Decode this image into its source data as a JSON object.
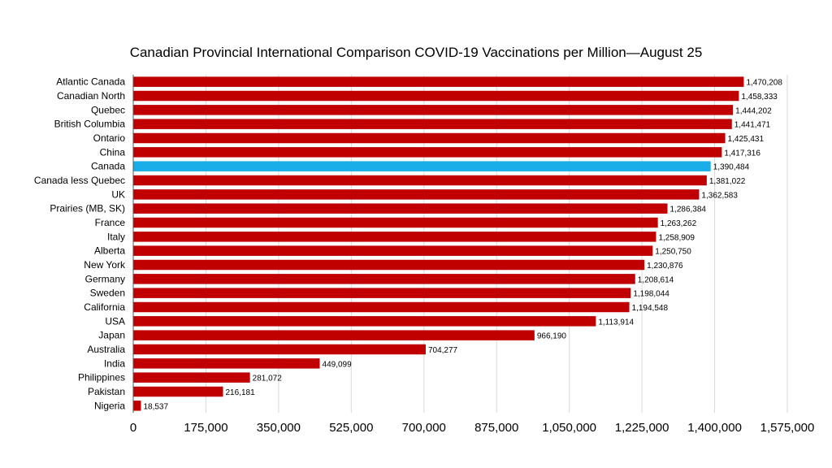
{
  "chart_data": {
    "type": "bar",
    "orientation": "horizontal",
    "title": "Canadian Provincial International Comparison COVID-19 Vaccinations per Million—August 25",
    "xlabel": "",
    "ylabel": "",
    "xlim": [
      0,
      1575000
    ],
    "x_ticks": [
      "0",
      "175,000",
      "350,000",
      "525,000",
      "700,000",
      "875,000",
      "1,050,000",
      "1,225,000",
      "1,400,000",
      "1,575,000"
    ],
    "x_tick_values": [
      0,
      175000,
      350000,
      525000,
      700000,
      875000,
      1050000,
      1225000,
      1400000,
      1575000
    ],
    "grid": "vertical",
    "legend": "none",
    "colors": {
      "default": "#c00000",
      "highlight": "#1aaee8",
      "grid": "#d9d9d9"
    },
    "categories": [
      "Atlantic Canada",
      "Canadian North",
      "Quebec",
      "British Columbia",
      "Ontario",
      "China",
      "Canada",
      "Canada less Quebec",
      "UK",
      "Prairies (MB, SK)",
      "France",
      "Italy",
      "Alberta",
      "New York",
      "Germany",
      "Sweden",
      "California",
      "USA",
      "Japan",
      "Australia",
      "India",
      "Philippines",
      "Pakistan",
      "Nigeria"
    ],
    "values": [
      1470208,
      1458333,
      1444202,
      1441471,
      1425431,
      1417316,
      1390484,
      1381022,
      1362583,
      1286384,
      1263262,
      1258909,
      1250750,
      1230876,
      1208614,
      1198044,
      1194548,
      1113914,
      966190,
      704277,
      449099,
      281072,
      216181,
      18537
    ],
    "value_labels": [
      "1,470,208",
      "1,458,333",
      "1,444,202",
      "1,441,471",
      "1,425,431",
      "1,417,316",
      "1,390,484",
      "1,381,022",
      "1,362,583",
      "1,286,384",
      "1,263,262",
      "1,258,909",
      "1,250,750",
      "1,230,876",
      "1,208,614",
      "1,198,044",
      "1,194,548",
      "1,113,914",
      "966,190",
      "704,277",
      "449,099",
      "281,072",
      "216,181",
      "18,537"
    ],
    "highlight_category": "Canada"
  }
}
